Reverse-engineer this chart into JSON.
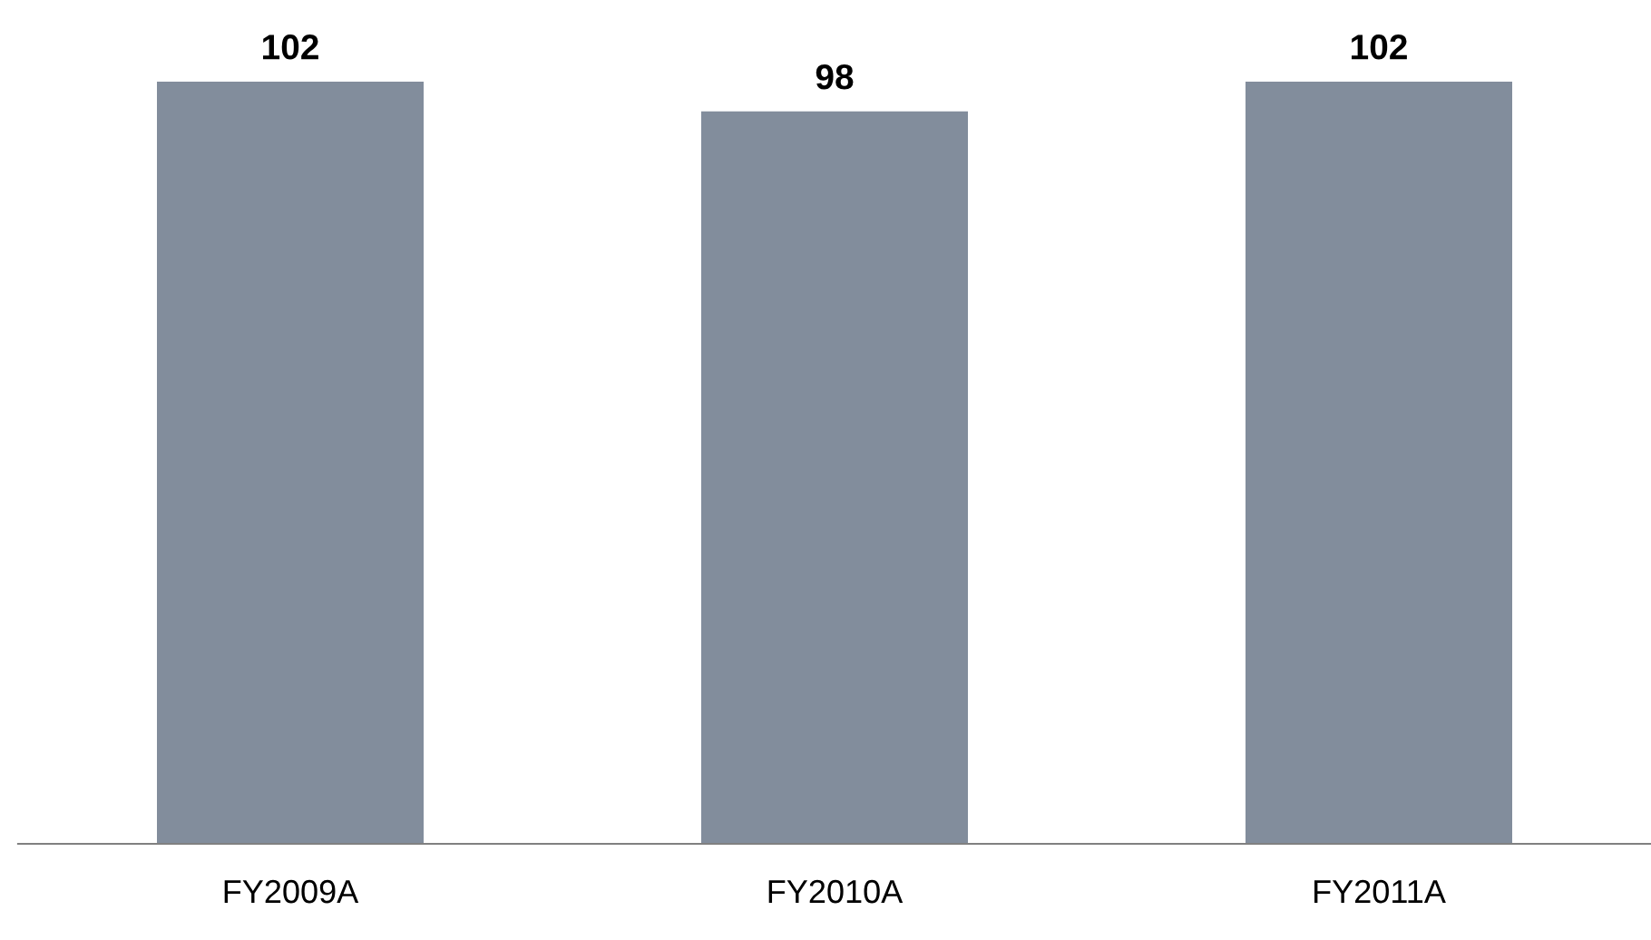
{
  "chart_data": {
    "type": "bar",
    "categories": [
      "FY2009A",
      "FY2010A",
      "FY2011A"
    ],
    "values": [
      102,
      98,
      102
    ],
    "color": "#828d9c",
    "data_labels": true
  }
}
